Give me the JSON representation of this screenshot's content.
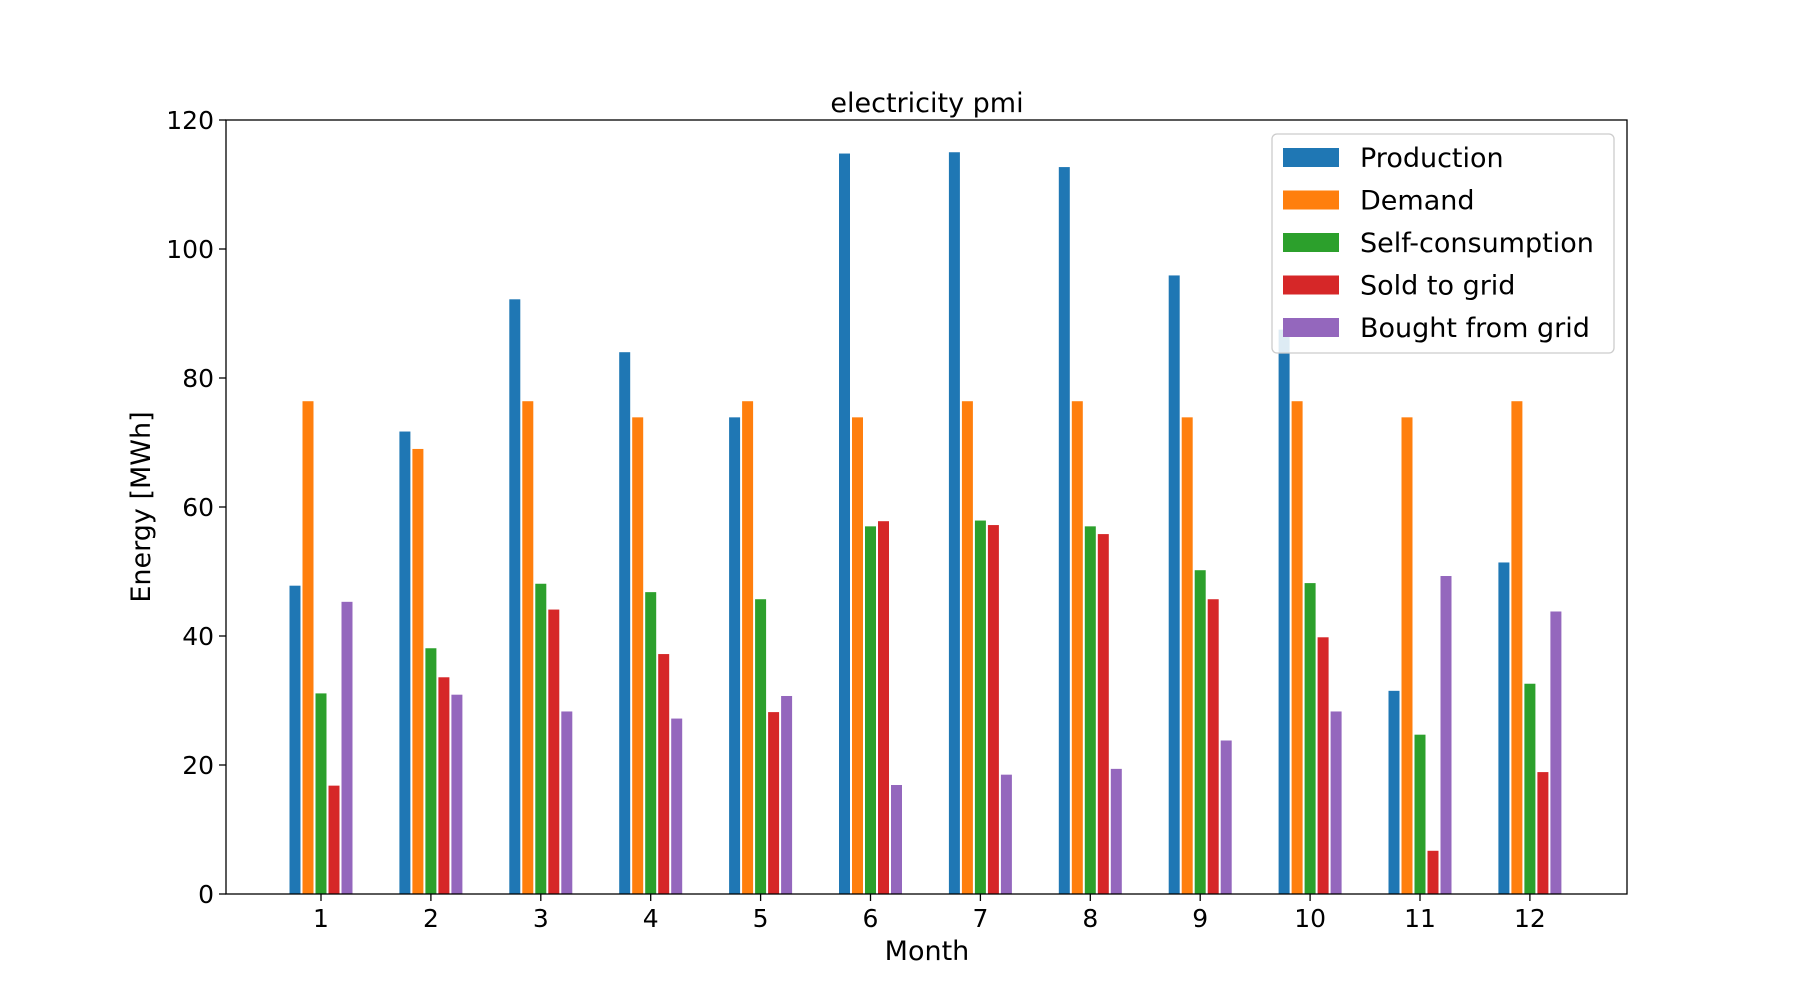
{
  "chart_data": {
    "type": "bar",
    "title": "electricity pmi",
    "xlabel": "Month",
    "ylabel": "Energy [MWh]",
    "ylim": [
      0,
      120
    ],
    "yticks": [
      0,
      20,
      40,
      60,
      80,
      100,
      120
    ],
    "grid": false,
    "legend_position": "top-right",
    "categories": [
      "1",
      "2",
      "3",
      "4",
      "5",
      "6",
      "7",
      "8",
      "9",
      "10",
      "11",
      "12"
    ],
    "series": [
      {
        "name": "Production",
        "color": "#1f77b4",
        "values": [
          47.8,
          71.7,
          92.2,
          84.0,
          73.9,
          114.8,
          115.0,
          112.7,
          95.9,
          87.5,
          31.5,
          51.4
        ]
      },
      {
        "name": "Demand",
        "color": "#ff7f0e",
        "values": [
          76.4,
          69.0,
          76.4,
          73.9,
          76.4,
          73.9,
          76.4,
          76.4,
          73.9,
          76.4,
          73.9,
          76.4
        ]
      },
      {
        "name": "Self-consumption",
        "color": "#2ca02c",
        "values": [
          31.1,
          38.1,
          48.1,
          46.8,
          45.7,
          57.0,
          57.9,
          57.0,
          50.2,
          48.2,
          24.7,
          32.6
        ]
      },
      {
        "name": "Sold to grid",
        "color": "#d62728",
        "values": [
          16.8,
          33.6,
          44.1,
          37.2,
          28.2,
          57.8,
          57.2,
          55.8,
          45.7,
          39.8,
          6.7,
          18.9
        ]
      },
      {
        "name": "Bought from grid",
        "color": "#9467bd",
        "values": [
          45.3,
          30.9,
          28.3,
          27.2,
          30.7,
          16.9,
          18.5,
          19.4,
          23.8,
          28.3,
          49.3,
          43.8
        ]
      }
    ]
  }
}
